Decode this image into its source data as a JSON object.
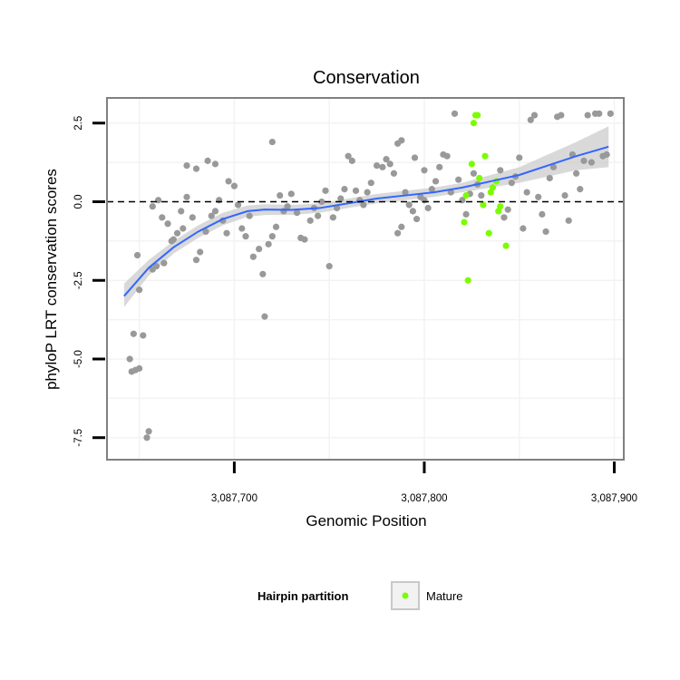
{
  "chart_data": {
    "type": "scatter",
    "title": "Conservation",
    "xlabel": "Genomic Position",
    "ylabel": "phyloP LRT conservation scores",
    "xlim": [
      3087633,
      3087905
    ],
    "ylim": [
      -8.2,
      3.3
    ],
    "x_ticks": [
      {
        "value": 3087700,
        "label": "3,087,700"
      },
      {
        "value": 3087800,
        "label": "3,087,800"
      },
      {
        "value": 3087900,
        "label": "3,087,900"
      }
    ],
    "y_ticks": [
      {
        "value": 2.5,
        "label": "2.5"
      },
      {
        "value": 0,
        "label": "0.0"
      },
      {
        "value": -2.5,
        "label": "-2.5"
      },
      {
        "value": -5,
        "label": "-5.0"
      },
      {
        "value": -7.5,
        "label": "-7.5"
      }
    ],
    "reference_line": {
      "y": 0,
      "style": "dashed"
    },
    "grid": true,
    "legend": {
      "title": "Hairpin partition",
      "position": "bottom",
      "entries": [
        {
          "label": "Mature",
          "color": "#7cfc00"
        }
      ]
    },
    "colors": {
      "points": "#999999",
      "highlight": "#7cfc00",
      "smooth_line": "#3366ff",
      "confidence_band": "#cccccc",
      "panel_border": "#808080"
    },
    "series": [
      {
        "group": "other",
        "color": "#999999",
        "points": [
          [
            3087645,
            -5.0
          ],
          [
            3087646,
            -5.4
          ],
          [
            3087648,
            -5.35
          ],
          [
            3087650,
            -5.3
          ],
          [
            3087647,
            -4.2
          ],
          [
            3087652,
            -4.25
          ],
          [
            3087654,
            -7.5
          ],
          [
            3087655,
            -7.3
          ],
          [
            3087649,
            -1.7
          ],
          [
            3087650,
            -2.8
          ],
          [
            3087657,
            -2.15
          ],
          [
            3087659,
            -2.05
          ],
          [
            3087663,
            -1.95
          ],
          [
            3087667,
            -1.25
          ],
          [
            3087670,
            -1.0
          ],
          [
            3087673,
            -0.85
          ],
          [
            3087657,
            -0.15
          ],
          [
            3087660,
            0.05
          ],
          [
            3087662,
            -0.5
          ],
          [
            3087665,
            -0.7
          ],
          [
            3087668,
            -1.2
          ],
          [
            3087672,
            -0.3
          ],
          [
            3087675,
            0.15
          ],
          [
            3087678,
            -0.5
          ],
          [
            3087680,
            -1.85
          ],
          [
            3087682,
            -1.6
          ],
          [
            3087685,
            -0.95
          ],
          [
            3087688,
            -0.45
          ],
          [
            3087690,
            -0.3
          ],
          [
            3087692,
            0.05
          ],
          [
            3087694,
            -0.6
          ],
          [
            3087696,
            -1.0
          ],
          [
            3087675,
            1.15
          ],
          [
            3087680,
            1.05
          ],
          [
            3087686,
            1.3
          ],
          [
            3087690,
            1.2
          ],
          [
            3087697,
            0.65
          ],
          [
            3087700,
            0.5
          ],
          [
            3087702,
            -0.1
          ],
          [
            3087704,
            -0.85
          ],
          [
            3087706,
            -1.1
          ],
          [
            3087708,
            -0.45
          ],
          [
            3087710,
            -1.75
          ],
          [
            3087713,
            -1.5
          ],
          [
            3087715,
            -2.3
          ],
          [
            3087716,
            -3.65
          ],
          [
            3087718,
            -1.35
          ],
          [
            3087720,
            -1.1
          ],
          [
            3087722,
            -0.8
          ],
          [
            3087724,
            0.2
          ],
          [
            3087726,
            -0.3
          ],
          [
            3087728,
            -0.15
          ],
          [
            3087730,
            0.25
          ],
          [
            3087733,
            -0.35
          ],
          [
            3087735,
            -1.15
          ],
          [
            3087737,
            -1.2
          ],
          [
            3087720,
            1.9
          ],
          [
            3087740,
            -0.6
          ],
          [
            3087742,
            -0.2
          ],
          [
            3087744,
            -0.45
          ],
          [
            3087746,
            0.0
          ],
          [
            3087748,
            0.35
          ],
          [
            3087750,
            -2.05
          ],
          [
            3087752,
            -0.5
          ],
          [
            3087754,
            -0.2
          ],
          [
            3087756,
            0.1
          ],
          [
            3087758,
            0.4
          ],
          [
            3087760,
            1.45
          ],
          [
            3087762,
            1.3
          ],
          [
            3087764,
            0.35
          ],
          [
            3087766,
            0.05
          ],
          [
            3087768,
            -0.1
          ],
          [
            3087770,
            0.3
          ],
          [
            3087772,
            0.6
          ],
          [
            3087775,
            1.15
          ],
          [
            3087778,
            1.1
          ],
          [
            3087780,
            1.35
          ],
          [
            3087782,
            1.2
          ],
          [
            3087784,
            0.9
          ],
          [
            3087786,
            -1.0
          ],
          [
            3087788,
            -0.8
          ],
          [
            3087790,
            0.3
          ],
          [
            3087792,
            -0.1
          ],
          [
            3087794,
            -0.3
          ],
          [
            3087796,
            -0.55
          ],
          [
            3087798,
            0.15
          ],
          [
            3087800,
            0.05
          ],
          [
            3087802,
            -0.2
          ],
          [
            3087786,
            1.85
          ],
          [
            3087788,
            1.95
          ],
          [
            3087795,
            1.4
          ],
          [
            3087800,
            1.0
          ],
          [
            3087804,
            0.4
          ],
          [
            3087806,
            0.65
          ],
          [
            3087808,
            1.1
          ],
          [
            3087810,
            1.5
          ],
          [
            3087812,
            1.45
          ],
          [
            3087814,
            0.3
          ],
          [
            3087816,
            2.8
          ],
          [
            3087818,
            0.7
          ],
          [
            3087820,
            0.05
          ],
          [
            3087822,
            -0.4
          ],
          [
            3087824,
            0.25
          ],
          [
            3087826,
            0.9
          ],
          [
            3087828,
            0.55
          ],
          [
            3087830,
            0.2
          ],
          [
            3087840,
            1.0
          ],
          [
            3087842,
            -0.5
          ],
          [
            3087844,
            -0.25
          ],
          [
            3087846,
            0.6
          ],
          [
            3087848,
            0.8
          ],
          [
            3087850,
            1.4
          ],
          [
            3087852,
            -0.85
          ],
          [
            3087854,
            0.3
          ],
          [
            3087856,
            2.6
          ],
          [
            3087858,
            2.75
          ],
          [
            3087860,
            0.15
          ],
          [
            3087862,
            -0.4
          ],
          [
            3087864,
            -0.95
          ],
          [
            3087866,
            0.75
          ],
          [
            3087868,
            1.1
          ],
          [
            3087870,
            2.7
          ],
          [
            3087872,
            2.75
          ],
          [
            3087874,
            0.2
          ],
          [
            3087876,
            -0.6
          ],
          [
            3087878,
            1.5
          ],
          [
            3087880,
            0.9
          ],
          [
            3087882,
            0.4
          ],
          [
            3087884,
            1.3
          ],
          [
            3087886,
            2.75
          ],
          [
            3087888,
            1.25
          ],
          [
            3087890,
            2.8
          ],
          [
            3087892,
            2.8
          ],
          [
            3087894,
            1.45
          ],
          [
            3087896,
            1.5
          ],
          [
            3087898,
            2.8
          ]
        ]
      },
      {
        "group": "Mature",
        "color": "#7cfc00",
        "points": [
          [
            3087821,
            -0.65
          ],
          [
            3087823,
            -2.5
          ],
          [
            3087822,
            0.2
          ],
          [
            3087825,
            1.2
          ],
          [
            3087826,
            2.5
          ],
          [
            3087827,
            2.75
          ],
          [
            3087828,
            2.75
          ],
          [
            3087829,
            0.75
          ],
          [
            3087831,
            -0.1
          ],
          [
            3087832,
            1.45
          ],
          [
            3087834,
            -1.0
          ],
          [
            3087835,
            0.3
          ],
          [
            3087836,
            0.45
          ],
          [
            3087838,
            0.65
          ],
          [
            3087839,
            -0.3
          ],
          [
            3087840,
            -0.15
          ],
          [
            3087843,
            -1.4
          ]
        ]
      }
    ],
    "smooth": {
      "x": [
        3087642,
        3087655,
        3087668,
        3087681,
        3087694,
        3087707,
        3087716,
        3087730,
        3087745,
        3087760,
        3087775,
        3087790,
        3087805,
        3087820,
        3087835,
        3087850,
        3087865,
        3087880,
        3087897
      ],
      "y": [
        -3.0,
        -2.1,
        -1.45,
        -0.95,
        -0.55,
        -0.3,
        -0.25,
        -0.26,
        -0.2,
        -0.05,
        0.1,
        0.2,
        0.3,
        0.45,
        0.65,
        0.85,
        1.15,
        1.45,
        1.75
      ],
      "lo": [
        -3.35,
        -2.35,
        -1.65,
        -1.15,
        -0.75,
        -0.48,
        -0.42,
        -0.42,
        -0.35,
        -0.2,
        -0.05,
        0.05,
        0.15,
        0.3,
        0.45,
        0.6,
        0.8,
        1.0,
        1.1
      ],
      "hi": [
        -2.6,
        -1.85,
        -1.25,
        -0.75,
        -0.35,
        -0.12,
        -0.08,
        -0.1,
        -0.05,
        0.1,
        0.25,
        0.35,
        0.45,
        0.6,
        0.85,
        1.1,
        1.5,
        1.9,
        2.4
      ]
    }
  }
}
